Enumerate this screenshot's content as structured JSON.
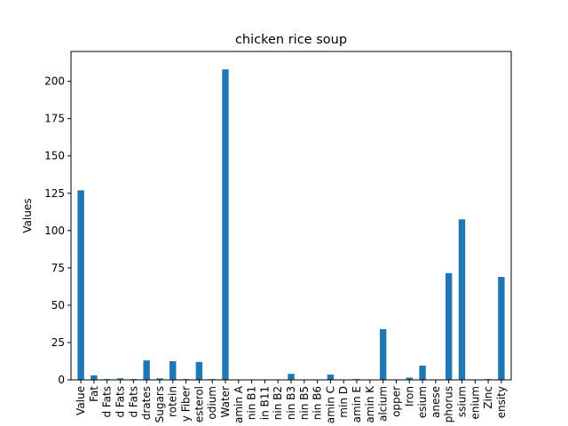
{
  "chart_data": {
    "type": "bar",
    "title": "chicken rice soup",
    "xlabel": "",
    "ylabel": "Values",
    "ylim": [
      0,
      220
    ],
    "yticks": [
      0,
      25,
      50,
      75,
      100,
      125,
      150,
      175,
      200
    ],
    "grid": false,
    "bar_color": "#1f77b4",
    "categories": [
      "Value",
      "Fat",
      "d Fats",
      "d Fats",
      "d Fats",
      "drates",
      "Sugars",
      "rotein",
      "y Fiber",
      "esterol",
      "odium",
      "Water",
      "amin A",
      "nin B1",
      "in B11",
      "nin B2",
      "nin B3",
      "nin B5",
      "nin B6",
      "amin C",
      "min D",
      "amin E",
      "amin K",
      "alcium",
      "opper",
      "Iron",
      "esium",
      "anese",
      "phorus",
      "ssium",
      "enium",
      "Zinc",
      "ensity"
    ],
    "values": [
      127,
      3,
      0.5,
      1,
      0.5,
      13,
      1,
      12.5,
      0.5,
      12,
      0.5,
      208,
      0,
      0,
      0,
      0,
      4,
      0,
      0,
      3.5,
      0,
      0.5,
      0,
      34,
      0,
      1.5,
      9.5,
      0,
      71.5,
      107.5,
      0,
      0.5,
      69
    ]
  }
}
